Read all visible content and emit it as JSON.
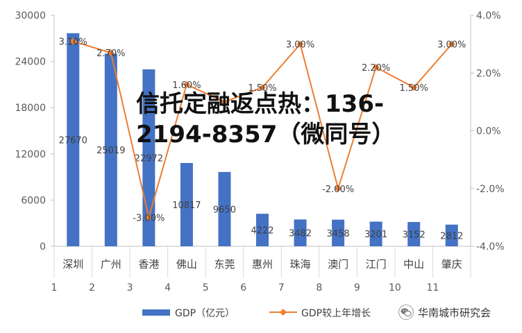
{
  "chart_data": {
    "type": "bar+line",
    "categories": [
      "深圳",
      "广州",
      "香港",
      "佛山",
      "东莞",
      "惠州",
      "珠海",
      "澳门",
      "江门",
      "中山",
      "肇庆"
    ],
    "index_labels": [
      "1",
      "2",
      "3",
      "4",
      "5",
      "6",
      "7",
      "8",
      "9",
      "10",
      "11"
    ],
    "series": [
      {
        "name": "GDP（亿元）",
        "type": "bar",
        "axis": "left",
        "color": "#4472C4",
        "values": [
          27670,
          25019,
          22972,
          10817,
          9650,
          4222,
          3482,
          3458,
          3201,
          3152,
          2812
        ],
        "labels": [
          "27670",
          "25019",
          "22972",
          "10817",
          "9650",
          "4222",
          "3482",
          "3458",
          "3201",
          "3152",
          "2812"
        ]
      },
      {
        "name": "GDP较上年增长",
        "type": "line",
        "axis": "right",
        "color": "#ED7D31",
        "values": [
          3.1,
          2.7,
          -3.0,
          1.6,
          1.0,
          1.5,
          3.0,
          -2.0,
          2.2,
          1.5,
          3.0
        ],
        "labels": [
          "3.10%",
          "2.70%",
          "-3.00%",
          "1.60%",
          "",
          "1.50%",
          "3.00%",
          "-2.00%",
          "2.20%",
          "1.50%",
          "3.00%"
        ]
      }
    ],
    "y_left": {
      "min": 0,
      "max": 30000,
      "ticks": [
        0,
        6000,
        12000,
        18000,
        24000,
        30000
      ],
      "tick_labels": [
        "0",
        "6000",
        "12000",
        "18000",
        "24000",
        "30000"
      ]
    },
    "y_right": {
      "min": -4,
      "max": 4,
      "ticks": [
        -4,
        -2,
        0,
        2,
        4
      ],
      "tick_labels": [
        "-4.0%",
        "-2.0%",
        "0.0%",
        "2.0%",
        "4.0%"
      ]
    },
    "grid": false,
    "legend_position": "bottom"
  },
  "overlay": {
    "text": "信托定融返点热：136-2194-8357（微同号）"
  },
  "watermark": {
    "text": "华南城市研究会",
    "icon": "wechat-icon"
  }
}
